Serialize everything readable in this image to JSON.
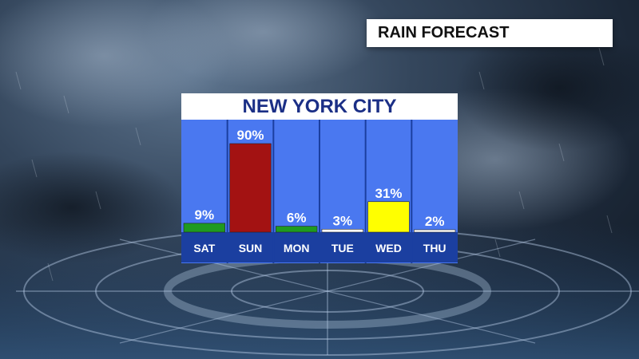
{
  "header": {
    "title": "RAIN FORECAST"
  },
  "chart_data": {
    "type": "bar",
    "title": "NEW YORK CITY",
    "categories": [
      "SAT",
      "SUN",
      "MON",
      "TUE",
      "WED",
      "THU"
    ],
    "values": [
      9,
      90,
      6,
      3,
      31,
      2
    ],
    "value_labels": [
      "9%",
      "90%",
      "6%",
      "3%",
      "31%",
      "2%"
    ],
    "bar_colors": [
      "#1f9a1f",
      "#a31212",
      "#1f9a1f",
      "#ffffff",
      "#ffff00",
      "#ffffff"
    ],
    "ylim": [
      0,
      100
    ],
    "colors": {
      "panel": "#4a78f0",
      "label_band": "#1b3fa0",
      "title_text": "#1b2f86"
    }
  }
}
